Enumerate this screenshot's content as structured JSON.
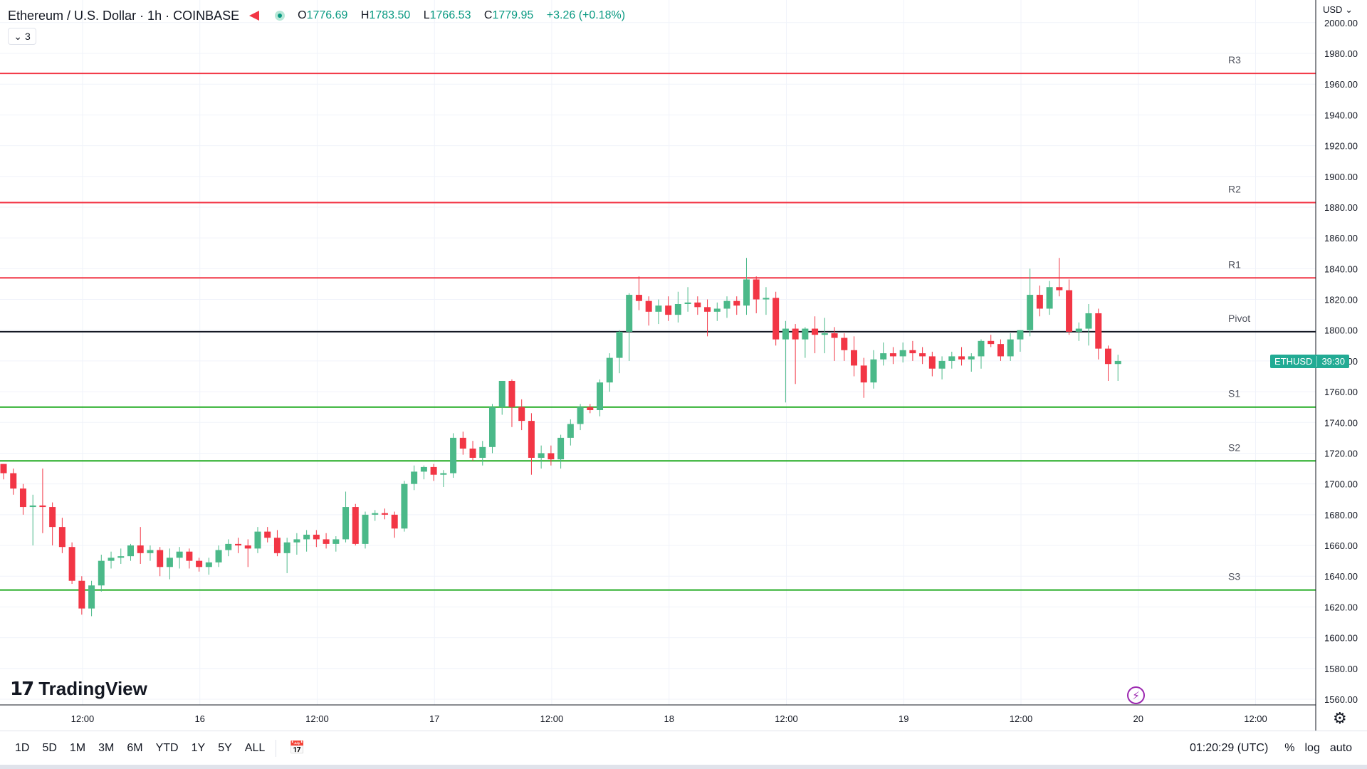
{
  "header": {
    "title": "Ethereum / U.S. Dollar · 1h · COINBASE",
    "ohlc": {
      "open_label": "O",
      "open": "1776.69",
      "high_label": "H",
      "high": "1783.50",
      "low_label": "L",
      "low": "1766.53",
      "close_label": "C",
      "close": "1779.95",
      "change": "+3.26 (+0.18%)"
    },
    "indicator_count": "3"
  },
  "price_axis": {
    "currency": "USD"
  },
  "symbol_label": {
    "name": "ETHUSD",
    "countdown": "39:30"
  },
  "brand": {
    "logo_mark": "17",
    "name": "TradingView"
  },
  "bottom_bar": {
    "ranges": [
      "1D",
      "5D",
      "1M",
      "3M",
      "6M",
      "YTD",
      "1Y",
      "5Y",
      "ALL"
    ],
    "clock": "01:20:29 (UTC)",
    "percent_label": "%",
    "log_label": "log",
    "auto_label": "auto"
  },
  "colors": {
    "up": "#4bb989",
    "down": "#f23645",
    "resistance": "#f23645",
    "support": "#22ab22",
    "pivot": "#131722",
    "grid": "#f0f3fa",
    "label": "#50535e"
  },
  "chart_data": {
    "type": "candlestick",
    "title": "Ethereum / U.S. Dollar · 1h · COINBASE",
    "ylim": [
      1555,
      2005
    ],
    "y_ticks": [
      2000,
      1980,
      1960,
      1940,
      1920,
      1900,
      1880,
      1860,
      1840,
      1820,
      1800,
      1780,
      1760,
      1740,
      1720,
      1700,
      1680,
      1660,
      1640,
      1620,
      1600,
      1580,
      1560
    ],
    "x_ticks": [
      {
        "label": "12:00",
        "index": 4
      },
      {
        "label": "16",
        "index": 16
      },
      {
        "label": "12:00",
        "index": 28
      },
      {
        "label": "17",
        "index": 40
      },
      {
        "label": "12:00",
        "index": 52
      },
      {
        "label": "18",
        "index": 64
      },
      {
        "label": "12:00",
        "index": 76
      },
      {
        "label": "19",
        "index": 88
      },
      {
        "label": "12:00",
        "index": 100
      },
      {
        "label": "20",
        "index": 112
      },
      {
        "label": "12:00",
        "index": 124
      }
    ],
    "grid": true,
    "levels": [
      {
        "name": "R3",
        "value": 1967,
        "kind": "resistance"
      },
      {
        "name": "R2",
        "value": 1883,
        "kind": "resistance"
      },
      {
        "name": "R1",
        "value": 1834,
        "kind": "resistance"
      },
      {
        "name": "Pivot",
        "value": 1799,
        "kind": "pivot"
      },
      {
        "name": "S1",
        "value": 1750,
        "kind": "support"
      },
      {
        "name": "S2",
        "value": 1715,
        "kind": "support"
      },
      {
        "name": "S3",
        "value": 1631,
        "kind": "support"
      }
    ],
    "candles": [
      [
        1713,
        1713,
        1703,
        1707
      ],
      [
        1707,
        1710,
        1693,
        1697
      ],
      [
        1697,
        1700,
        1680,
        1685
      ],
      [
        1685,
        1693,
        1660,
        1686
      ],
      [
        1686,
        1710,
        1668,
        1685
      ],
      [
        1685,
        1688,
        1660,
        1672
      ],
      [
        1672,
        1678,
        1655,
        1659
      ],
      [
        1659,
        1662,
        1635,
        1637
      ],
      [
        1637,
        1640,
        1615,
        1619
      ],
      [
        1619,
        1637,
        1614,
        1634
      ],
      [
        1634,
        1654,
        1630,
        1650
      ],
      [
        1650,
        1656,
        1645,
        1652
      ],
      [
        1652,
        1658,
        1648,
        1653
      ],
      [
        1653,
        1661,
        1650,
        1660
      ],
      [
        1660,
        1672,
        1648,
        1655
      ],
      [
        1655,
        1660,
        1650,
        1657
      ],
      [
        1657,
        1659,
        1640,
        1646
      ],
      [
        1646,
        1658,
        1638,
        1652
      ],
      [
        1652,
        1659,
        1645,
        1656
      ],
      [
        1656,
        1658,
        1645,
        1650
      ],
      [
        1650,
        1652,
        1643,
        1646
      ],
      [
        1646,
        1652,
        1641,
        1649
      ],
      [
        1649,
        1660,
        1646,
        1657
      ],
      [
        1657,
        1664,
        1653,
        1661
      ],
      [
        1661,
        1665,
        1655,
        1660
      ],
      [
        1660,
        1664,
        1646,
        1658
      ],
      [
        1658,
        1672,
        1655,
        1669
      ],
      [
        1669,
        1672,
        1662,
        1665
      ],
      [
        1665,
        1670,
        1653,
        1655
      ],
      [
        1655,
        1665,
        1642,
        1662
      ],
      [
        1662,
        1668,
        1654,
        1664
      ],
      [
        1664,
        1670,
        1656,
        1667
      ],
      [
        1667,
        1670,
        1659,
        1664
      ],
      [
        1664,
        1668,
        1658,
        1661
      ],
      [
        1661,
        1666,
        1656,
        1664
      ],
      [
        1664,
        1695,
        1662,
        1685
      ],
      [
        1685,
        1687,
        1660,
        1661
      ],
      [
        1661,
        1682,
        1658,
        1680
      ],
      [
        1680,
        1683,
        1676,
        1681
      ],
      [
        1681,
        1684,
        1677,
        1680
      ],
      [
        1680,
        1682,
        1665,
        1671
      ],
      [
        1671,
        1702,
        1669,
        1700
      ],
      [
        1700,
        1712,
        1696,
        1708
      ],
      [
        1708,
        1712,
        1703,
        1711
      ],
      [
        1711,
        1713,
        1702,
        1706
      ],
      [
        1706,
        1709,
        1698,
        1707
      ],
      [
        1707,
        1733,
        1704,
        1730
      ],
      [
        1730,
        1734,
        1719,
        1723
      ],
      [
        1723,
        1728,
        1715,
        1717
      ],
      [
        1717,
        1728,
        1712,
        1724
      ],
      [
        1724,
        1752,
        1720,
        1750
      ],
      [
        1750,
        1767,
        1745,
        1767
      ],
      [
        1767,
        1768,
        1737,
        1750
      ],
      [
        1750,
        1755,
        1735,
        1741
      ],
      [
        1741,
        1746,
        1706,
        1717
      ],
      [
        1717,
        1725,
        1710,
        1720
      ],
      [
        1720,
        1725,
        1712,
        1716
      ],
      [
        1716,
        1732,
        1710,
        1730
      ],
      [
        1730,
        1742,
        1725,
        1739
      ],
      [
        1739,
        1752,
        1735,
        1750
      ],
      [
        1750,
        1752,
        1746,
        1748
      ],
      [
        1748,
        1768,
        1744,
        1766
      ],
      [
        1766,
        1785,
        1760,
        1782
      ],
      [
        1782,
        1800,
        1772,
        1799
      ],
      [
        1799,
        1824,
        1780,
        1823
      ],
      [
        1823,
        1835,
        1813,
        1819
      ],
      [
        1819,
        1822,
        1803,
        1812
      ],
      [
        1812,
        1820,
        1804,
        1816
      ],
      [
        1816,
        1822,
        1806,
        1810
      ],
      [
        1810,
        1825,
        1805,
        1817
      ],
      [
        1817,
        1828,
        1812,
        1818
      ],
      [
        1818,
        1822,
        1810,
        1815
      ],
      [
        1815,
        1820,
        1796,
        1812
      ],
      [
        1812,
        1818,
        1806,
        1814
      ],
      [
        1814,
        1822,
        1808,
        1819
      ],
      [
        1819,
        1822,
        1810,
        1816
      ],
      [
        1816,
        1847,
        1810,
        1833
      ],
      [
        1833,
        1835,
        1811,
        1820
      ],
      [
        1820,
        1828,
        1810,
        1821
      ],
      [
        1821,
        1825,
        1790,
        1794
      ],
      [
        1794,
        1806,
        1753,
        1801
      ],
      [
        1801,
        1804,
        1765,
        1794
      ],
      [
        1794,
        1802,
        1782,
        1801
      ],
      [
        1801,
        1809,
        1785,
        1797
      ],
      [
        1797,
        1808,
        1785,
        1798
      ],
      [
        1798,
        1802,
        1780,
        1795
      ],
      [
        1795,
        1798,
        1780,
        1787
      ],
      [
        1787,
        1796,
        1770,
        1777
      ],
      [
        1777,
        1782,
        1756,
        1766
      ],
      [
        1766,
        1787,
        1762,
        1781
      ],
      [
        1781,
        1792,
        1777,
        1785
      ],
      [
        1785,
        1789,
        1778,
        1783
      ],
      [
        1783,
        1792,
        1779,
        1787
      ],
      [
        1787,
        1793,
        1780,
        1785
      ],
      [
        1785,
        1789,
        1778,
        1783
      ],
      [
        1783,
        1786,
        1770,
        1775
      ],
      [
        1775,
        1783,
        1768,
        1780
      ],
      [
        1780,
        1786,
        1775,
        1783
      ],
      [
        1783,
        1789,
        1777,
        1781
      ],
      [
        1781,
        1785,
        1773,
        1783
      ],
      [
        1783,
        1794,
        1775,
        1793
      ],
      [
        1793,
        1797,
        1789,
        1791
      ],
      [
        1791,
        1794,
        1780,
        1783
      ],
      [
        1783,
        1798,
        1780,
        1794
      ],
      [
        1794,
        1800,
        1786,
        1800
      ],
      [
        1800,
        1840,
        1796,
        1823
      ],
      [
        1823,
        1829,
        1809,
        1814
      ],
      [
        1814,
        1832,
        1810,
        1828
      ],
      [
        1828,
        1847,
        1822,
        1826
      ],
      [
        1826,
        1833,
        1797,
        1799
      ],
      [
        1799,
        1805,
        1793,
        1801
      ],
      [
        1801,
        1817,
        1790,
        1811
      ],
      [
        1811,
        1814,
        1781,
        1788
      ],
      [
        1788,
        1790,
        1767,
        1778
      ],
      [
        1778,
        1784,
        1767,
        1780
      ]
    ]
  }
}
